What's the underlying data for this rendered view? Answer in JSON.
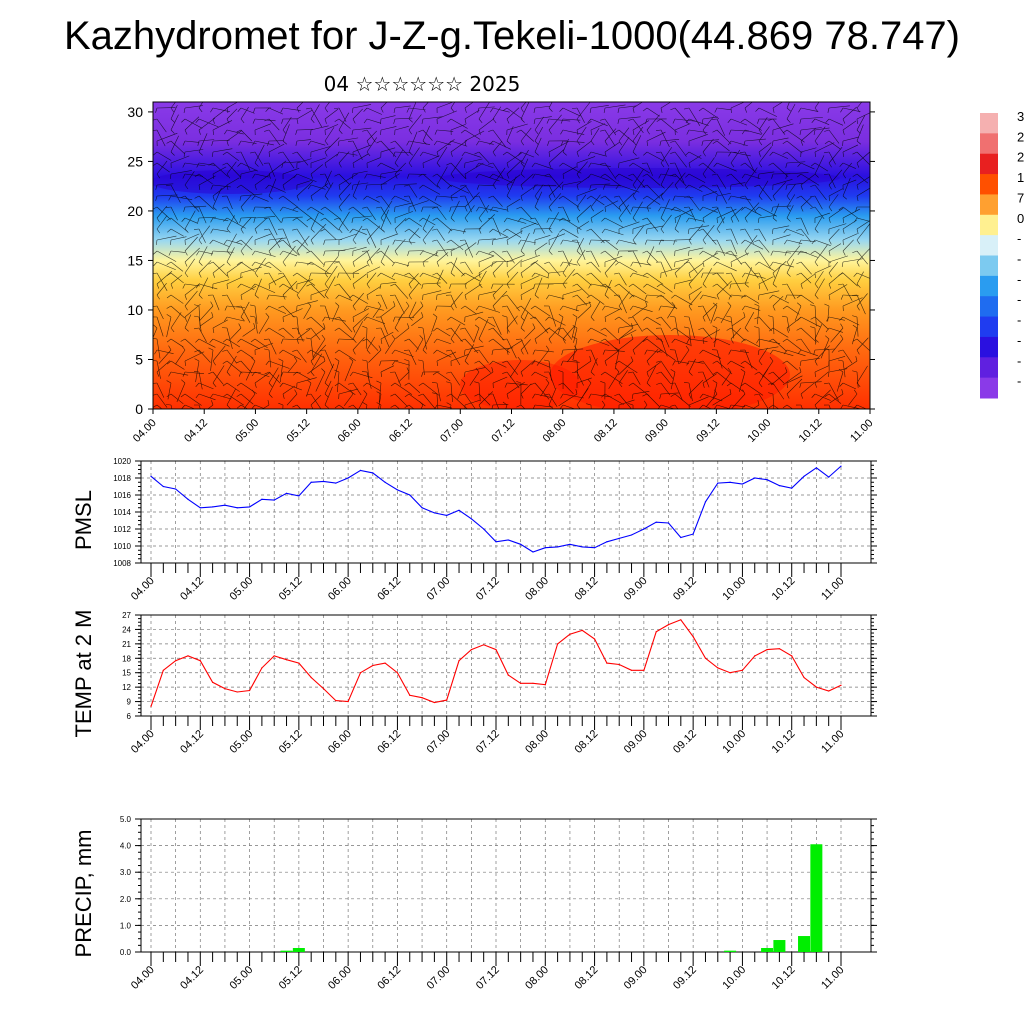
{
  "title": "Kazhydromet for J-Z-g.Tekeli-1000(44.869 78.747)",
  "subtitle": "04 ☆☆☆☆☆☆ 2025",
  "time_labels": [
    "04.00",
    "04.12",
    "05.00",
    "05.12",
    "06.00",
    "06.12",
    "07.00",
    "07.12",
    "08.00",
    "08.12",
    "09.00",
    "09.12",
    "10.00",
    "10.12",
    "11.00"
  ],
  "chart_data": [
    {
      "type": "heatmap",
      "name": "cross-section",
      "ylim": [
        0,
        31
      ],
      "y_ticks": [
        0,
        5,
        10,
        15,
        20,
        25,
        30
      ],
      "bands": [
        {
          "y": 0,
          "color": "#ff3000"
        },
        {
          "y": 6,
          "color": "#ff6a10"
        },
        {
          "y": 10,
          "color": "#ff9a20"
        },
        {
          "y": 13,
          "color": "#ffcf40"
        },
        {
          "y": 15,
          "color": "#fff59c"
        },
        {
          "y": 17,
          "color": "#9ad8f0"
        },
        {
          "y": 19.5,
          "color": "#2a9cf0"
        },
        {
          "y": 21.5,
          "color": "#1f3cf0"
        },
        {
          "y": 23.5,
          "color": "#2a10e0"
        },
        {
          "y": 27,
          "color": "#7a2ee0"
        },
        {
          "y": 31,
          "color": "#8a3ae8"
        }
      ],
      "colorbar_labels": [
        "3",
        "2",
        "2",
        "1",
        "7",
        "0",
        "-",
        "-",
        "-",
        "-",
        "-",
        "-",
        "-",
        "-"
      ],
      "colorbar_colors": [
        "#f5b0b0",
        "#f07070",
        "#e82020",
        "#ff5000",
        "#ffa030",
        "#fff090",
        "#d8f0f8",
        "#7ccaf0",
        "#2a9cf0",
        "#1f6cf0",
        "#1f3cf0",
        "#2a10e0",
        "#6020e0",
        "#8a3ae8"
      ]
    },
    {
      "type": "line",
      "ylabel": "PMSL",
      "ylim": [
        1008,
        1020
      ],
      "y_ticks": [
        1008,
        1010,
        1012,
        1014,
        1016,
        1018,
        1020
      ],
      "color": "#0000ff",
      "x": [
        0,
        3,
        6,
        9,
        12,
        15,
        18,
        21,
        24,
        27,
        30,
        33,
        36,
        39,
        42,
        45,
        48,
        51,
        54,
        57,
        60,
        63,
        66,
        69,
        72,
        75,
        78,
        81,
        84,
        87,
        90,
        93,
        96,
        99,
        102,
        105,
        108,
        111,
        114,
        117,
        120,
        123,
        126,
        129,
        132,
        135,
        138,
        141,
        144,
        147,
        150,
        153,
        156,
        159,
        162,
        165,
        168
      ],
      "values": [
        1018.2,
        1017.0,
        1016.7,
        1015.5,
        1014.5,
        1014.6,
        1014.8,
        1014.5,
        1014.6,
        1015.5,
        1015.4,
        1016.2,
        1015.9,
        1017.5,
        1017.6,
        1017.4,
        1018.0,
        1018.9,
        1018.6,
        1017.5,
        1016.6,
        1016.0,
        1014.5,
        1013.9,
        1013.6,
        1014.2,
        1013.2,
        1012.0,
        1010.5,
        1010.7,
        1010.2,
        1009.3,
        1009.8,
        1009.9,
        1010.2,
        1009.9,
        1009.8,
        1010.5,
        1010.9,
        1011.3,
        1012.0,
        1012.8,
        1012.7,
        1011.0,
        1011.4,
        1015.2,
        1017.4,
        1017.5,
        1017.3,
        1018.0,
        1017.8,
        1017.1,
        1016.8,
        1018.2,
        1019.2,
        1018.1,
        1019.4
      ]
    },
    {
      "type": "line",
      "ylabel": "TEMP at 2 M",
      "ylim": [
        6,
        27
      ],
      "y_ticks": [
        6,
        9,
        12,
        15,
        18,
        21,
        24,
        27
      ],
      "color": "#ff0000",
      "x": [
        0,
        3,
        6,
        9,
        12,
        15,
        18,
        21,
        24,
        27,
        30,
        33,
        36,
        39,
        42,
        45,
        48,
        51,
        54,
        57,
        60,
        63,
        66,
        69,
        72,
        75,
        78,
        81,
        84,
        87,
        90,
        93,
        96,
        99,
        102,
        105,
        108,
        111,
        114,
        117,
        120,
        123,
        126,
        129,
        132,
        135,
        138,
        141,
        144,
        147,
        150,
        153,
        156,
        159,
        162,
        165,
        168
      ],
      "values": [
        8.0,
        15.5,
        17.5,
        18.5,
        17.5,
        13.0,
        11.7,
        11.0,
        11.3,
        16.0,
        18.5,
        17.7,
        17.0,
        14.0,
        11.7,
        9.2,
        9.0,
        15.0,
        16.5,
        17.0,
        15.0,
        10.3,
        9.8,
        8.8,
        9.3,
        17.5,
        19.8,
        20.8,
        19.8,
        14.5,
        12.8,
        12.8,
        12.5,
        21.0,
        23.0,
        23.8,
        22.0,
        17.0,
        16.7,
        15.5,
        15.5,
        23.5,
        25.0,
        26.0,
        22.5,
        18.0,
        16.0,
        15.0,
        15.5,
        18.5,
        19.8,
        20.0,
        18.5,
        14.0,
        12.0,
        11.2,
        12.4
      ]
    },
    {
      "type": "bar",
      "ylabel": "PRECIP, mm",
      "ylim": [
        0,
        5
      ],
      "y_ticks": [
        "0.0",
        "1.0",
        "2.0",
        "3.0",
        "4.0",
        "5.0"
      ],
      "color": "#00ee00",
      "x": [
        33,
        36,
        141,
        150,
        153,
        159,
        162
      ],
      "values": [
        0.05,
        0.15,
        0.05,
        0.15,
        0.45,
        0.6,
        4.05
      ]
    }
  ]
}
